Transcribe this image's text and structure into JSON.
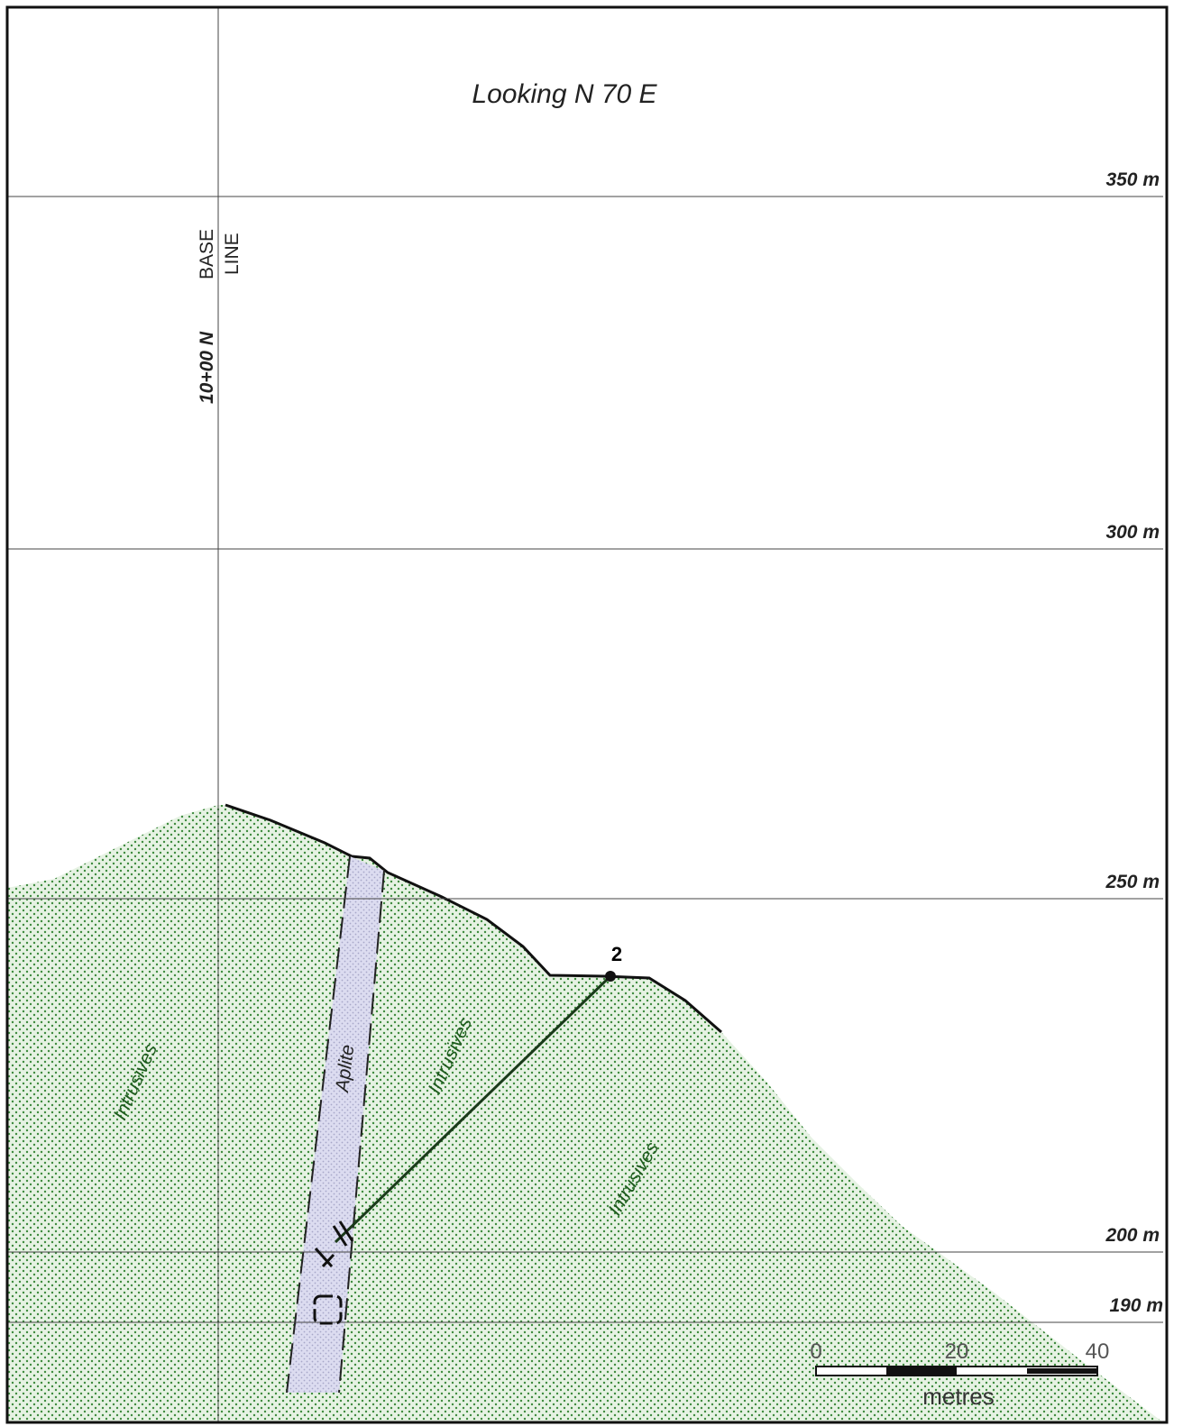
{
  "header": {
    "title": "Looking N 70 E"
  },
  "elevations": [
    "350 m",
    "300 m",
    "250 m",
    "200 m",
    "190 m"
  ],
  "baseline": {
    "label_lines": [
      "BASE",
      "LINE"
    ],
    "station": "10+00 N"
  },
  "units": [
    "Intrusives",
    "Intrusives",
    "Intrusives",
    "Aplite"
  ],
  "drill_hole": "2",
  "scale_bar": {
    "ticks": [
      0,
      20,
      40
    ],
    "unit": "metres"
  }
}
